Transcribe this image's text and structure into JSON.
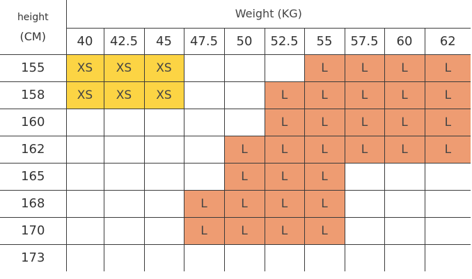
{
  "table": {
    "corner_line1": "height",
    "corner_line2": "(CM)",
    "weight_title": "Weight (KG)",
    "weights": [
      "40",
      "42.5",
      "45",
      "47.5",
      "50",
      "52.5",
      "55",
      "57.5",
      "60",
      "62"
    ],
    "rows": [
      {
        "height": "155",
        "cells": [
          "XS",
          "XS",
          "XS",
          "",
          "",
          "",
          "L",
          "L",
          "L",
          "L"
        ]
      },
      {
        "height": "158",
        "cells": [
          "XS",
          "XS",
          "XS",
          "",
          "",
          "L",
          "L",
          "L",
          "L",
          "L"
        ]
      },
      {
        "height": "160",
        "cells": [
          "",
          "",
          "",
          "",
          "",
          "L",
          "L",
          "L",
          "L",
          "L"
        ]
      },
      {
        "height": "162",
        "cells": [
          "",
          "",
          "",
          "",
          "L",
          "L",
          "L",
          "L",
          "L",
          "L"
        ]
      },
      {
        "height": "165",
        "cells": [
          "",
          "",
          "",
          "",
          "L",
          "L",
          "L",
          "",
          "",
          ""
        ]
      },
      {
        "height": "168",
        "cells": [
          "",
          "",
          "",
          "L",
          "L",
          "L",
          "L",
          "",
          "",
          ""
        ]
      },
      {
        "height": "170",
        "cells": [
          "",
          "",
          "",
          "L",
          "L",
          "L",
          "L",
          "",
          "",
          ""
        ]
      },
      {
        "height": "173",
        "cells": [
          "",
          "",
          "",
          "",
          "",
          "",
          "",
          "",
          "",
          ""
        ]
      }
    ]
  },
  "colors": {
    "XS": "#fcd444",
    "L": "#ee9c72",
    "grid_line": "#3a3a3a"
  }
}
